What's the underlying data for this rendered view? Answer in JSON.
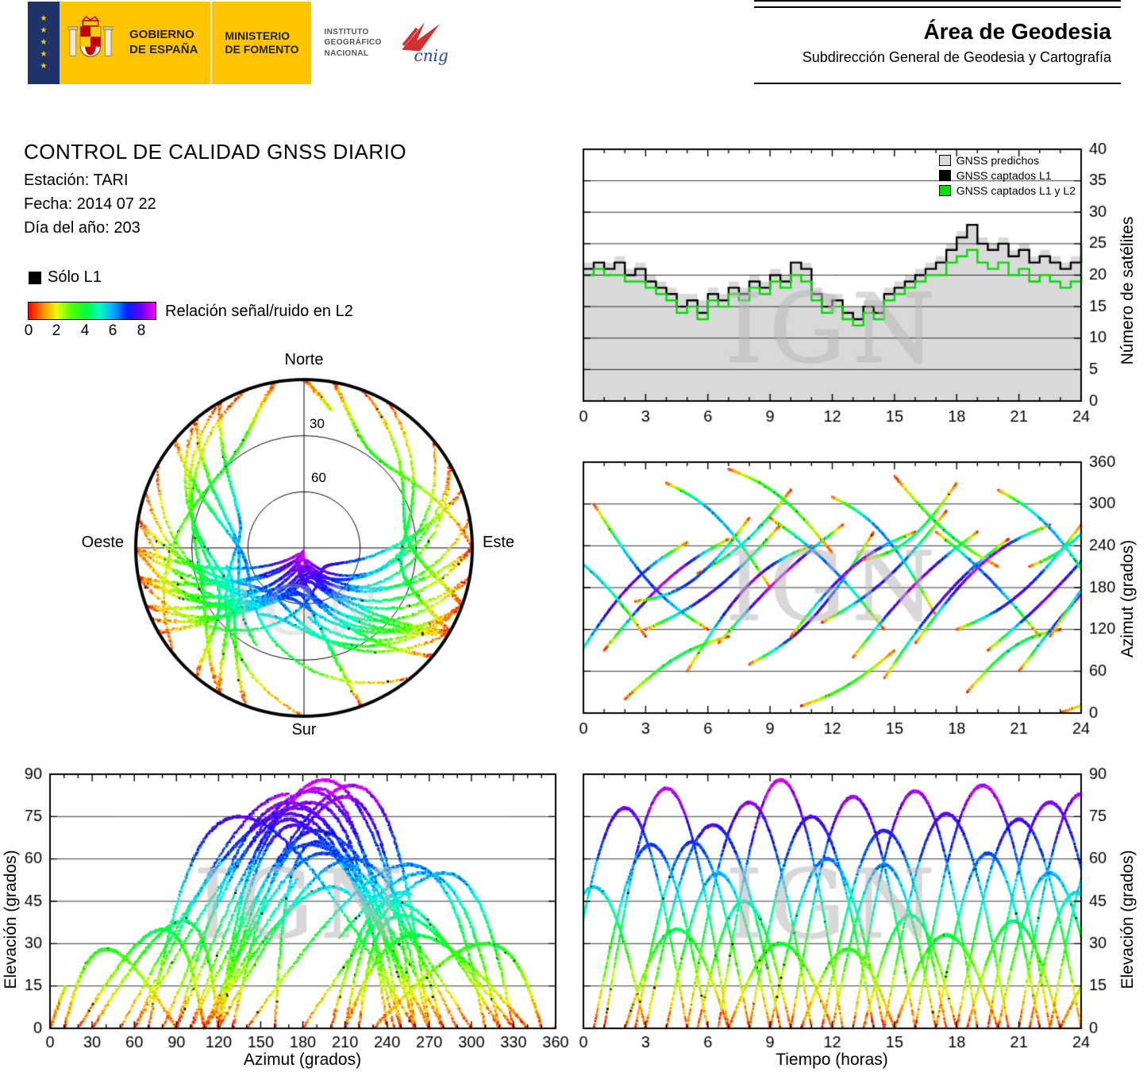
{
  "header": {
    "gobierno": [
      "GOBIERNO",
      "DE ESPAÑA"
    ],
    "ministerio": [
      "MINISTERIO",
      "DE FOMENTO"
    ],
    "instituto": [
      "INSTITUTO",
      "GEOGRÁFICO",
      "NACIONAL"
    ],
    "cnig": "cnig",
    "area_title": "Área de Geodesia",
    "area_subtitle": "Subdirección General de Geodesia y Cartografía"
  },
  "info": {
    "title": "CONTROL DE CALIDAD GNSS DIARIO",
    "estacion": "Estación: TARI",
    "fecha": "Fecha: 2014 07 22",
    "dia": "Día del año: 203"
  },
  "legend": {
    "solo_l1": "Sólo L1",
    "solo_l1_color": "#000000",
    "snr_label": "Relación señal/ruido en L2",
    "snr_ticks": [
      0,
      2,
      4,
      6,
      8
    ],
    "snr_min": 0,
    "snr_max": 9
  },
  "watermark": "IGN",
  "chart_data": [
    {
      "id": "skyplot",
      "type": "scatter",
      "projection": "polar",
      "labels": {
        "north": "Norte",
        "south": "Sur",
        "east": "Este",
        "west": "Oeste"
      },
      "elevation_rings": [
        30,
        60
      ],
      "source": "satellite_passes",
      "color_by": "snr_l2"
    },
    {
      "id": "num_satellites",
      "type": "area",
      "xlabel": "",
      "ylabel": "Número de satélites",
      "xlim": [
        0,
        24
      ],
      "ylim": [
        0,
        40
      ],
      "xticks": [
        0,
        3,
        6,
        9,
        12,
        15,
        18,
        21,
        24
      ],
      "yticks": [
        0,
        5,
        10,
        15,
        20,
        25,
        30,
        35,
        40
      ],
      "x_step_hours": 0.5,
      "legend": [
        {
          "label": "GNSS predichos",
          "color": "#d9d9d9"
        },
        {
          "label": "GNSS captados L1",
          "color": "#000000"
        },
        {
          "label": "GNSS captados L1 y L2",
          "color": "#00dd00"
        }
      ],
      "series": [
        {
          "name": "GNSS predichos",
          "color": "#d9d9d9",
          "values": [
            22,
            22,
            22,
            23,
            21,
            22,
            20,
            19,
            18,
            17,
            17,
            16,
            18,
            17,
            19,
            18,
            20,
            19,
            21,
            20,
            22,
            22,
            18,
            17,
            17,
            15,
            15,
            16,
            16,
            18,
            19,
            20,
            21,
            22,
            23,
            25,
            27,
            28,
            26,
            25,
            26,
            24,
            25,
            23,
            24,
            23,
            22,
            23,
            25
          ]
        },
        {
          "name": "GNSS captados L1",
          "color": "#000000",
          "values": [
            21,
            22,
            21,
            22,
            20,
            21,
            19,
            18,
            17,
            15,
            16,
            14,
            17,
            16,
            18,
            17,
            19,
            18,
            20,
            19,
            22,
            21,
            17,
            15,
            16,
            14,
            13,
            15,
            14,
            17,
            18,
            19,
            20,
            21,
            22,
            24,
            26,
            28,
            25,
            24,
            25,
            23,
            24,
            22,
            23,
            22,
            21,
            22,
            25
          ]
        },
        {
          "name": "GNSS captados L1 y L2",
          "color": "#00dd00",
          "values": [
            20,
            21,
            20,
            20,
            19,
            19,
            18,
            17,
            16,
            14,
            15,
            13,
            16,
            15,
            17,
            16,
            18,
            17,
            19,
            18,
            20,
            19,
            16,
            14,
            15,
            13,
            12,
            14,
            13,
            16,
            17,
            18,
            19,
            20,
            20,
            22,
            23,
            24,
            22,
            21,
            22,
            20,
            21,
            19,
            20,
            19,
            18,
            19,
            23
          ]
        }
      ]
    },
    {
      "id": "azimuth_time",
      "type": "scatter",
      "xlabel": "",
      "ylabel": "Azimut (grados)",
      "xlim": [
        0,
        24
      ],
      "ylim": [
        0,
        360
      ],
      "xticks": [
        0,
        3,
        6,
        9,
        12,
        15,
        18,
        21,
        24
      ],
      "yticks": [
        0,
        60,
        120,
        180,
        240,
        300,
        360
      ],
      "source": "satellite_passes",
      "color_by": "snr_l2"
    },
    {
      "id": "elevation_azimuth",
      "type": "scatter",
      "xlabel": "Azimut (grados)",
      "ylabel": "Elevación (grados)",
      "xlim": [
        0,
        360
      ],
      "ylim": [
        0,
        90
      ],
      "xticks": [
        0,
        30,
        60,
        90,
        120,
        150,
        180,
        210,
        240,
        270,
        300,
        330,
        360
      ],
      "yticks": [
        0,
        15,
        30,
        45,
        60,
        75,
        90
      ],
      "source": "satellite_passes",
      "color_by": "snr_l2"
    },
    {
      "id": "elevation_time",
      "type": "scatter",
      "xlabel": "Tiempo (horas)",
      "ylabel": "Elevación (grados)",
      "xlim": [
        0,
        24
      ],
      "ylim": [
        0,
        90
      ],
      "xticks": [
        0,
        3,
        6,
        9,
        12,
        15,
        18,
        21,
        24
      ],
      "yticks": [
        0,
        15,
        30,
        45,
        60,
        75,
        90
      ],
      "source": "satellite_passes",
      "color_by": "snr_l2"
    }
  ],
  "satellite_passes": [
    {
      "t0": -1,
      "dur": 6,
      "az0": 45,
      "daz": 200,
      "cur": 30,
      "el": 78
    },
    {
      "t0": 0.5,
      "dur": 5.5,
      "az0": 300,
      "daz": -180,
      "cur": -25,
      "el": 65
    },
    {
      "t0": 1,
      "dur": 6,
      "az0": 90,
      "daz": 160,
      "cur": 20,
      "el": 85
    },
    {
      "t0": 2,
      "dur": 5,
      "az0": 20,
      "daz": 90,
      "cur": 15,
      "el": 35
    },
    {
      "t0": 3,
      "dur": 6.5,
      "az0": 120,
      "daz": 150,
      "cur": -20,
      "el": 72
    },
    {
      "t0": 4,
      "dur": 5,
      "az0": 330,
      "daz": -150,
      "cur": 25,
      "el": 55
    },
    {
      "t0": 5,
      "dur": 6,
      "az0": 60,
      "daz": 180,
      "cur": 35,
      "el": 80
    },
    {
      "t0": 5.5,
      "dur": 4.5,
      "az0": 200,
      "daz": 120,
      "cur": -15,
      "el": 45
    },
    {
      "t0": 6.5,
      "dur": 6,
      "az0": 100,
      "daz": 170,
      "cur": 10,
      "el": 88
    },
    {
      "t0": 7,
      "dur": 5,
      "az0": 350,
      "daz": -120,
      "cur": 20,
      "el": 30
    },
    {
      "t0": 8,
      "dur": 6,
      "az0": 70,
      "daz": 190,
      "cur": -30,
      "el": 75
    },
    {
      "t0": 9,
      "dur": 5.5,
      "az0": 280,
      "daz": -160,
      "cur": 15,
      "el": 60
    },
    {
      "t0": 10,
      "dur": 6,
      "az0": 110,
      "daz": 150,
      "cur": 25,
      "el": 82
    },
    {
      "t0": 10.5,
      "dur": 4.5,
      "az0": 10,
      "daz": 80,
      "cur": -10,
      "el": 28
    },
    {
      "t0": 11.5,
      "dur": 6,
      "az0": 130,
      "daz": 160,
      "cur": -20,
      "el": 70
    },
    {
      "t0": 12,
      "dur": 5,
      "az0": 310,
      "daz": -170,
      "cur": 30,
      "el": 58
    },
    {
      "t0": 13,
      "dur": 6,
      "az0": 80,
      "daz": 180,
      "cur": 15,
      "el": 84
    },
    {
      "t0": 13.5,
      "dur": 4.5,
      "az0": 220,
      "daz": 110,
      "cur": -25,
      "el": 40
    },
    {
      "t0": 14.5,
      "dur": 6,
      "az0": 50,
      "daz": 200,
      "cur": 20,
      "el": 76
    },
    {
      "t0": 15,
      "dur": 5,
      "az0": 340,
      "daz": -130,
      "cur": -15,
      "el": 33
    },
    {
      "t0": 16,
      "dur": 6.5,
      "az0": 100,
      "daz": 170,
      "cur": 30,
      "el": 86
    },
    {
      "t0": 17,
      "dur": 5,
      "az0": 260,
      "daz": -150,
      "cur": 10,
      "el": 62
    },
    {
      "t0": 18,
      "dur": 6,
      "az0": 120,
      "daz": 150,
      "cur": -25,
      "el": 74
    },
    {
      "t0": 18.5,
      "dur": 4.5,
      "az0": 30,
      "daz": 90,
      "cur": 20,
      "el": 38
    },
    {
      "t0": 19.5,
      "dur": 6,
      "az0": 90,
      "daz": 180,
      "cur": -10,
      "el": 80
    },
    {
      "t0": 20,
      "dur": 5,
      "az0": 320,
      "daz": -160,
      "cur": 25,
      "el": 55
    },
    {
      "t0": 21,
      "dur": 6,
      "az0": 60,
      "daz": 190,
      "cur": 15,
      "el": 83
    },
    {
      "t0": 21.5,
      "dur": 4.5,
      "az0": 210,
      "daz": 120,
      "cur": -20,
      "el": 48
    },
    {
      "t0": 22.5,
      "dur": 5.5,
      "az0": 110,
      "daz": 160,
      "cur": 30,
      "el": 70
    },
    {
      "t0": 23,
      "dur": 5,
      "az0": 0,
      "daz": 100,
      "cur": -15,
      "el": 25
    },
    {
      "t0": -2,
      "dur": 5,
      "az0": 250,
      "daz": -140,
      "cur": 20,
      "el": 50
    },
    {
      "t0": 2.5,
      "dur": 5.5,
      "az0": 160,
      "daz": 120,
      "cur": -30,
      "el": 66
    }
  ],
  "snr_palette": {
    "min": 0,
    "max": 9,
    "stops": [
      "#ff0000",
      "#ff8c00",
      "#ffff00",
      "#00ff00",
      "#00ffff",
      "#0000ff",
      "#ff00ff"
    ]
  }
}
